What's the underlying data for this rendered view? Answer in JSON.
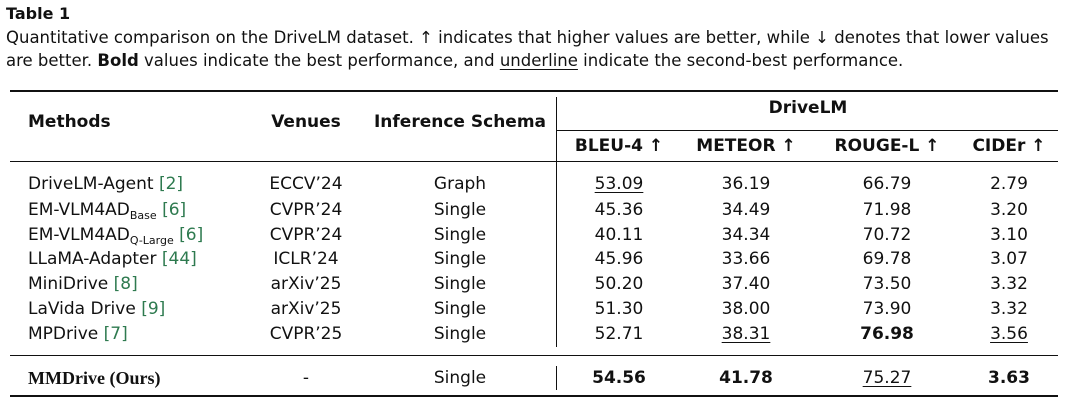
{
  "title": "Table 1",
  "caption": [
    {
      "text": "Quantitative comparison on the DriveLM dataset. ↑ indicates that higher values are better, while ↓ denotes that lower values are better. "
    },
    {
      "text": "Bold",
      "style": "bold"
    },
    {
      "text": " values indicate the best performance, and "
    },
    {
      "text": "underline",
      "style": "underline"
    },
    {
      "text": " indicate the second-best performance."
    }
  ],
  "table": {
    "header": {
      "methods": "Methods",
      "venues": "Venues",
      "schema": "Inference Schema",
      "group": "DriveLM",
      "metrics": [
        "BLEU-4 ↑",
        "METEOR ↑",
        "ROUGE-L ↑",
        "CIDEr ↑"
      ]
    },
    "rows": [
      {
        "method": "DriveLM-Agent",
        "ref": "[2]",
        "venue": "ECCV’24",
        "schema": "Graph",
        "scores": [
          "53.09",
          "36.19",
          "66.79",
          "2.79"
        ],
        "bold": [],
        "underline": [
          0
        ]
      },
      {
        "method": "EM-VLM4AD",
        "sub": "Base",
        "ref": "[6]",
        "venue": "CVPR’24",
        "schema": "Single",
        "scores": [
          "45.36",
          "34.49",
          "71.98",
          "3.20"
        ],
        "bold": [],
        "underline": []
      },
      {
        "method": "EM-VLM4AD",
        "sub": "Q-Large",
        "ref": "[6]",
        "venue": "CVPR’24",
        "schema": "Single",
        "scores": [
          "40.11",
          "34.34",
          "70.72",
          "3.10"
        ],
        "bold": [],
        "underline": []
      },
      {
        "method": "LLaMA-Adapter",
        "ref": "[44]",
        "venue": "ICLR’24",
        "schema": "Single",
        "scores": [
          "45.96",
          "33.66",
          "69.78",
          "3.07"
        ],
        "bold": [],
        "underline": []
      },
      {
        "method": "MiniDrive",
        "ref": "[8]",
        "venue": "arXiv’25",
        "schema": "Single",
        "scores": [
          "50.20",
          "37.40",
          "73.50",
          "3.32"
        ],
        "bold": [],
        "underline": []
      },
      {
        "method": "LaVida Drive",
        "ref": "[9]",
        "venue": "arXiv’25",
        "schema": "Single",
        "scores": [
          "51.30",
          "38.00",
          "73.90",
          "3.32"
        ],
        "bold": [],
        "underline": []
      },
      {
        "method": "MPDrive",
        "ref": "[7]",
        "venue": "CVPR’25",
        "schema": "Single",
        "scores": [
          "52.71",
          "38.31",
          "76.98",
          "3.56"
        ],
        "bold": [
          2
        ],
        "underline": [
          1,
          3
        ]
      },
      {
        "method": "MMDrive (Ours)",
        "serif": true,
        "venue": "-",
        "schema": "Single",
        "scores": [
          "54.56",
          "41.78",
          "75.27",
          "3.63"
        ],
        "bold": [
          0,
          1,
          3
        ],
        "underline": [
          2
        ]
      }
    ]
  }
}
